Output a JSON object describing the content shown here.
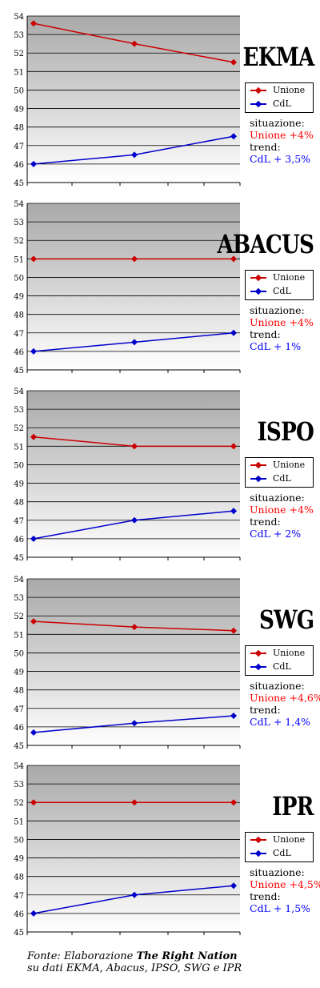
{
  "colors": {
    "unione": "#cc0000",
    "cdl": "#0000cc",
    "notes_unione": "#ff0000",
    "notes_cdl": "#0000ff"
  },
  "legend": {
    "unione": "Unione",
    "cdl": "CdL"
  },
  "labels": {
    "situazione": "situazione:",
    "trend": "trend:"
  },
  "source": {
    "line1_prefix": "Fonte: Elaborazione ",
    "line1_bold": "The Right Nation",
    "line2": "su dati EKMA, Abacus, IPSO, SWG e IPR"
  },
  "panels": [
    {
      "name": "EKMA",
      "situazione": "Unione +4%",
      "trend": "CdL + 3,5%"
    },
    {
      "name": "ABACUS",
      "situazione": "Unione +4%",
      "trend": "CdL + 1%"
    },
    {
      "name": "ISPO",
      "situazione": "Unione +4%",
      "trend": "CdL + 2%"
    },
    {
      "name": "SWG",
      "situazione": "Unione +4,6%",
      "trend": "CdL + 1,4%"
    },
    {
      "name": "IPR",
      "situazione": "Unione +4,5%",
      "trend": "CdL + 1,5%"
    }
  ],
  "chart_data": [
    {
      "type": "line",
      "title": "EKMA",
      "x": [
        1,
        2,
        3
      ],
      "ylim": [
        45,
        54
      ],
      "grid": true,
      "legend_position": "right",
      "yticks": [
        45,
        46,
        47,
        48,
        49,
        50,
        51,
        52,
        53,
        54
      ],
      "series": [
        {
          "name": "Unione",
          "values": [
            53.6,
            52.5,
            51.5
          ]
        },
        {
          "name": "CdL",
          "values": [
            46.0,
            46.5,
            47.5
          ]
        }
      ]
    },
    {
      "type": "line",
      "title": "ABACUS",
      "x": [
        1,
        2,
        3
      ],
      "ylim": [
        45,
        54
      ],
      "grid": true,
      "legend_position": "right",
      "yticks": [
        45,
        46,
        47,
        48,
        49,
        50,
        51,
        52,
        53,
        54
      ],
      "series": [
        {
          "name": "Unione",
          "values": [
            51.0,
            51.0,
            51.0
          ]
        },
        {
          "name": "CdL",
          "values": [
            46.0,
            46.5,
            47.0
          ]
        }
      ]
    },
    {
      "type": "line",
      "title": "ISPO",
      "x": [
        1,
        2,
        3
      ],
      "ylim": [
        45,
        54
      ],
      "grid": true,
      "legend_position": "right",
      "yticks": [
        45,
        46,
        47,
        48,
        49,
        50,
        51,
        52,
        53,
        54
      ],
      "series": [
        {
          "name": "Unione",
          "values": [
            51.5,
            51.0,
            51.0
          ]
        },
        {
          "name": "CdL",
          "values": [
            46.0,
            47.0,
            47.5
          ]
        }
      ]
    },
    {
      "type": "line",
      "title": "SWG",
      "x": [
        1,
        2,
        3
      ],
      "ylim": [
        45,
        54
      ],
      "grid": true,
      "legend_position": "right",
      "yticks": [
        45,
        46,
        47,
        48,
        49,
        50,
        51,
        52,
        53,
        54
      ],
      "series": [
        {
          "name": "Unione",
          "values": [
            51.7,
            51.4,
            51.2
          ]
        },
        {
          "name": "CdL",
          "values": [
            45.7,
            46.2,
            46.6
          ]
        }
      ]
    },
    {
      "type": "line",
      "title": "IPR",
      "x": [
        1,
        2,
        3
      ],
      "ylim": [
        45,
        54
      ],
      "grid": true,
      "legend_position": "right",
      "yticks": [
        45,
        46,
        47,
        48,
        49,
        50,
        51,
        52,
        53,
        54
      ],
      "series": [
        {
          "name": "Unione",
          "values": [
            52.0,
            52.0,
            52.0
          ]
        },
        {
          "name": "CdL",
          "values": [
            46.0,
            47.0,
            47.5
          ]
        }
      ]
    }
  ]
}
